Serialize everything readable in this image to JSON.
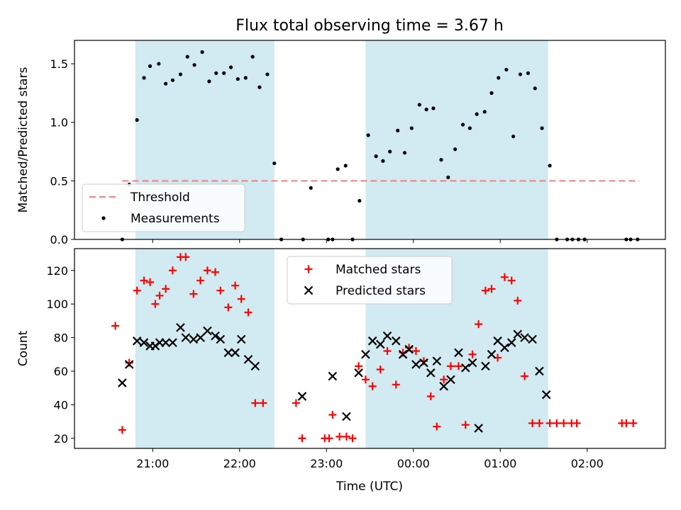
{
  "title": "Flux total observing time = 3.67 h",
  "xlabel": "Time (UTC)",
  "colors": {
    "span": "#add8e6",
    "threshold": "#f08080",
    "measurement": "#000000",
    "matched": "#ff0000",
    "predicted": "#000000"
  },
  "chart_data": [
    {
      "type": "scatter",
      "ylabel": "Matched/Predicted stars",
      "ylim": [
        0,
        1.7
      ],
      "yticks": [
        "0.0",
        "0.5",
        "1.0",
        "1.5"
      ],
      "ytick_values": [
        0,
        0.5,
        1.0,
        1.5
      ],
      "xlim_hours": [
        20.1,
        26.9
      ],
      "grid": false,
      "legend": [
        "Threshold",
        "Measurements"
      ],
      "legend_position": "lower-left",
      "shaded_spans_hours": [
        [
          20.8,
          22.4
        ],
        [
          23.45,
          25.55
        ]
      ],
      "threshold": {
        "label": "Threshold",
        "value": 0.5,
        "x_hours": [
          20.65,
          26.6
        ],
        "style": "dashed"
      },
      "series": [
        {
          "name": "Measurements",
          "points": [
            [
              20.65,
              0.0
            ],
            [
              20.73,
              0.47
            ],
            [
              20.82,
              1.02
            ],
            [
              20.9,
              1.38
            ],
            [
              20.97,
              1.48
            ],
            [
              21.07,
              1.5
            ],
            [
              21.15,
              1.33
            ],
            [
              21.23,
              1.36
            ],
            [
              21.32,
              1.41
            ],
            [
              21.4,
              1.56
            ],
            [
              21.48,
              1.49
            ],
            [
              21.57,
              1.6
            ],
            [
              21.65,
              1.35
            ],
            [
              21.73,
              1.42
            ],
            [
              21.82,
              1.42
            ],
            [
              21.9,
              1.47
            ],
            [
              21.98,
              1.37
            ],
            [
              22.07,
              1.38
            ],
            [
              22.15,
              1.56
            ],
            [
              22.23,
              1.3
            ],
            [
              22.32,
              1.41
            ],
            [
              22.4,
              0.65
            ],
            [
              22.48,
              0.0
            ],
            [
              22.73,
              0.0
            ],
            [
              22.82,
              0.44
            ],
            [
              23.02,
              0.0
            ],
            [
              23.07,
              0.0
            ],
            [
              23.13,
              0.6
            ],
            [
              23.22,
              0.63
            ],
            [
              23.3,
              0.0
            ],
            [
              23.38,
              0.33
            ],
            [
              23.48,
              0.89
            ],
            [
              23.57,
              0.71
            ],
            [
              23.65,
              0.67
            ],
            [
              23.73,
              0.75
            ],
            [
              23.82,
              0.93
            ],
            [
              23.9,
              0.74
            ],
            [
              23.98,
              0.95
            ],
            [
              24.07,
              1.15
            ],
            [
              24.15,
              1.11
            ],
            [
              24.23,
              1.12
            ],
            [
              24.32,
              0.68
            ],
            [
              24.4,
              0.53
            ],
            [
              24.48,
              0.77
            ],
            [
              24.57,
              0.98
            ],
            [
              24.65,
              0.95
            ],
            [
              24.73,
              1.07
            ],
            [
              24.82,
              1.09
            ],
            [
              24.9,
              1.25
            ],
            [
              24.98,
              1.38
            ],
            [
              25.07,
              1.45
            ],
            [
              25.15,
              0.88
            ],
            [
              25.23,
              1.41
            ],
            [
              25.32,
              1.42
            ],
            [
              25.4,
              1.29
            ],
            [
              25.48,
              0.95
            ],
            [
              25.57,
              0.63
            ],
            [
              25.65,
              0.0
            ],
            [
              25.77,
              0.0
            ],
            [
              25.83,
              0.0
            ],
            [
              25.9,
              0.0
            ],
            [
              25.97,
              0.0
            ],
            [
              26.45,
              0.0
            ],
            [
              26.5,
              0.0
            ],
            [
              26.58,
              0.0
            ]
          ]
        }
      ]
    },
    {
      "type": "scatter",
      "ylabel": "Count",
      "ylim": [
        14,
        133
      ],
      "yticks": [
        "20",
        "40",
        "60",
        "80",
        "100",
        "120"
      ],
      "ytick_values": [
        20,
        40,
        60,
        80,
        100,
        120
      ],
      "xticks": [
        "21:00",
        "22:00",
        "23:00",
        "00:00",
        "01:00",
        "02:00"
      ],
      "xtick_values_hours": [
        21,
        22,
        23,
        24,
        25,
        26
      ],
      "xlim_hours": [
        20.1,
        26.9
      ],
      "grid": false,
      "legend": [
        "Matched stars",
        "Predicted stars"
      ],
      "legend_position": "upper-center",
      "shaded_spans_hours": [
        [
          20.8,
          22.4
        ],
        [
          23.45,
          25.55
        ]
      ],
      "series": [
        {
          "name": "Matched stars",
          "marker": "plus",
          "points": [
            [
              20.57,
              87
            ],
            [
              20.65,
              25
            ],
            [
              20.73,
              65
            ],
            [
              20.82,
              108
            ],
            [
              20.9,
              114
            ],
            [
              20.97,
              113
            ],
            [
              21.03,
              100
            ],
            [
              21.08,
              105
            ],
            [
              21.15,
              109
            ],
            [
              21.23,
              120
            ],
            [
              21.32,
              128
            ],
            [
              21.38,
              128
            ],
            [
              21.47,
              106
            ],
            [
              21.55,
              114
            ],
            [
              21.63,
              120
            ],
            [
              21.72,
              119
            ],
            [
              21.78,
              108
            ],
            [
              21.87,
              98
            ],
            [
              21.95,
              111
            ],
            [
              22.02,
              103
            ],
            [
              22.1,
              95
            ],
            [
              22.18,
              41
            ],
            [
              22.27,
              41
            ],
            [
              22.65,
              41
            ],
            [
              22.72,
              20
            ],
            [
              22.98,
              20
            ],
            [
              23.03,
              20
            ],
            [
              23.07,
              34
            ],
            [
              23.15,
              21
            ],
            [
              23.23,
              21
            ],
            [
              23.3,
              20
            ],
            [
              23.37,
              63
            ],
            [
              23.45,
              55
            ],
            [
              23.53,
              51
            ],
            [
              23.62,
              61
            ],
            [
              23.7,
              72
            ],
            [
              23.8,
              52
            ],
            [
              23.88,
              71
            ],
            [
              23.95,
              74
            ],
            [
              24.03,
              72
            ],
            [
              24.12,
              66
            ],
            [
              24.2,
              45
            ],
            [
              24.27,
              27
            ],
            [
              24.35,
              55
            ],
            [
              24.43,
              63
            ],
            [
              24.52,
              63
            ],
            [
              24.6,
              28
            ],
            [
              24.68,
              70
            ],
            [
              24.75,
              88
            ],
            [
              24.83,
              108
            ],
            [
              24.9,
              109
            ],
            [
              24.97,
              68
            ],
            [
              25.05,
              116
            ],
            [
              25.13,
              114
            ],
            [
              25.2,
              102
            ],
            [
              25.28,
              57
            ],
            [
              25.37,
              29
            ],
            [
              25.45,
              29
            ],
            [
              25.57,
              29
            ],
            [
              25.65,
              29
            ],
            [
              25.73,
              29
            ],
            [
              25.82,
              29
            ],
            [
              25.88,
              29
            ],
            [
              26.4,
              29
            ],
            [
              26.45,
              29
            ],
            [
              26.53,
              29
            ]
          ]
        },
        {
          "name": "Predicted stars",
          "marker": "x",
          "points": [
            [
              20.65,
              53
            ],
            [
              20.73,
              64
            ],
            [
              20.82,
              78
            ],
            [
              20.9,
              77
            ],
            [
              20.97,
              75
            ],
            [
              21.03,
              75
            ],
            [
              21.08,
              77
            ],
            [
              21.15,
              77
            ],
            [
              21.23,
              77
            ],
            [
              21.32,
              86
            ],
            [
              21.38,
              80
            ],
            [
              21.47,
              79
            ],
            [
              21.55,
              80
            ],
            [
              21.63,
              84
            ],
            [
              21.72,
              81
            ],
            [
              21.78,
              79
            ],
            [
              21.87,
              71
            ],
            [
              21.95,
              71
            ],
            [
              22.02,
              79
            ],
            [
              22.1,
              67
            ],
            [
              22.18,
              63
            ],
            [
              22.72,
              45
            ],
            [
              23.07,
              57
            ],
            [
              23.23,
              33
            ],
            [
              23.37,
              59
            ],
            [
              23.45,
              70
            ],
            [
              23.53,
              78
            ],
            [
              23.62,
              76
            ],
            [
              23.7,
              81
            ],
            [
              23.8,
              78
            ],
            [
              23.88,
              70
            ],
            [
              23.95,
              73
            ],
            [
              24.03,
              64
            ],
            [
              24.12,
              65
            ],
            [
              24.2,
              59
            ],
            [
              24.27,
              66
            ],
            [
              24.35,
              51
            ],
            [
              24.43,
              55
            ],
            [
              24.52,
              71
            ],
            [
              24.6,
              62
            ],
            [
              24.68,
              65
            ],
            [
              24.75,
              26
            ],
            [
              24.83,
              63
            ],
            [
              24.9,
              70
            ],
            [
              24.97,
              78
            ],
            [
              25.05,
              74
            ],
            [
              25.13,
              77
            ],
            [
              25.2,
              82
            ],
            [
              25.28,
              80
            ],
            [
              25.37,
              79
            ],
            [
              25.45,
              60
            ],
            [
              25.53,
              46
            ]
          ]
        }
      ]
    }
  ]
}
